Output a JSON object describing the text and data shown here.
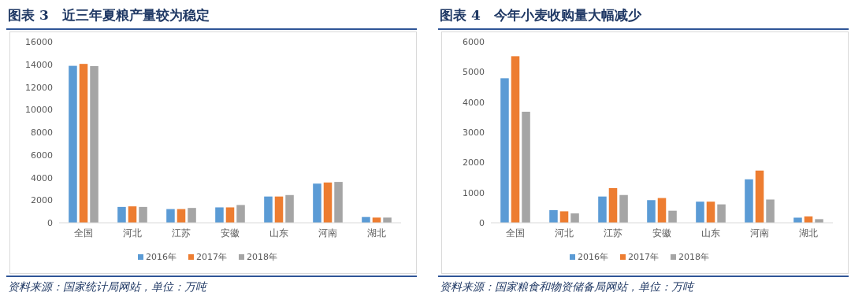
{
  "chart_data": [
    {
      "type": "bar",
      "title": "图表 3　近三年夏粮产量较为稳定",
      "categories": [
        "全国",
        "河北",
        "江苏",
        "安徽",
        "山东",
        "河南",
        "湖北"
      ],
      "series": [
        {
          "name": "2016年",
          "color": "#5b9bd5",
          "values": [
            13870,
            1400,
            1210,
            1360,
            2320,
            3460,
            510
          ]
        },
        {
          "name": "2017年",
          "color": "#ed7d31",
          "values": [
            14040,
            1450,
            1210,
            1360,
            2320,
            3560,
            460
          ]
        },
        {
          "name": "2018年",
          "color": "#a5a5a5",
          "values": [
            13850,
            1400,
            1310,
            1570,
            2450,
            3610,
            460
          ]
        }
      ],
      "ylim": [
        0,
        16000
      ],
      "yticks": [
        0,
        2000,
        4000,
        6000,
        8000,
        10000,
        12000,
        14000,
        16000
      ],
      "legend": "bottom",
      "annotations": [
        "资料来源：国家统计局网站，单位：万吨"
      ]
    },
    {
      "type": "bar",
      "title": "图表 4　今年小麦收购量大幅减少",
      "categories": [
        "全国",
        "河北",
        "江苏",
        "安徽",
        "山东",
        "河南",
        "湖北"
      ],
      "series": [
        {
          "name": "2016年",
          "color": "#5b9bd5",
          "values": [
            4790,
            420,
            870,
            750,
            700,
            1440,
            170
          ]
        },
        {
          "name": "2017年",
          "color": "#ed7d31",
          "values": [
            5520,
            380,
            1150,
            820,
            700,
            1730,
            210
          ]
        },
        {
          "name": "2018年",
          "color": "#a5a5a5",
          "values": [
            3680,
            310,
            920,
            400,
            610,
            770,
            120
          ]
        }
      ],
      "ylim": [
        0,
        6000
      ],
      "yticks": [
        0,
        1000,
        2000,
        3000,
        4000,
        5000,
        6000
      ],
      "legend": "bottom",
      "annotations": [
        "资料来源：国家粮食和物资储备局网站，单位：万吨"
      ]
    }
  ]
}
